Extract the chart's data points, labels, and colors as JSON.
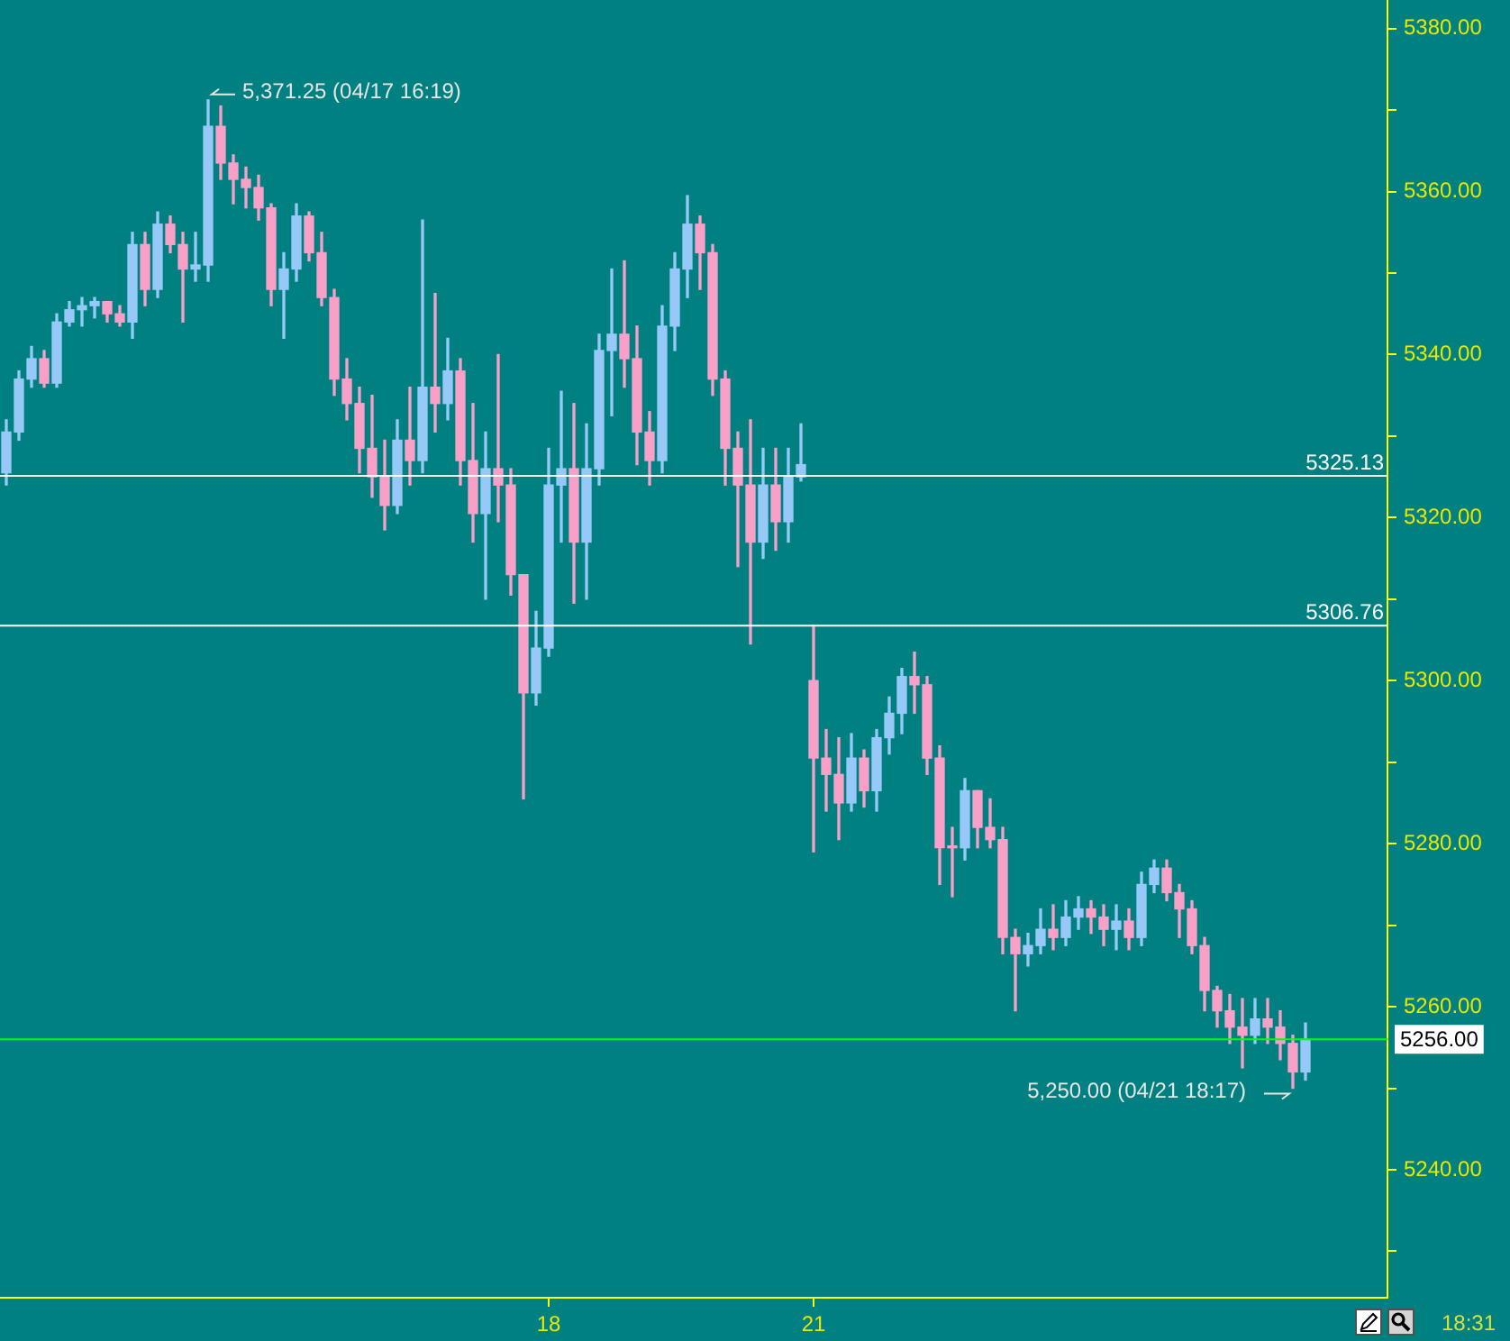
{
  "chart_data": {
    "type": "candlestick",
    "categories": [
      null,
      null,
      null,
      null,
      null,
      null,
      null,
      null,
      null,
      null,
      null,
      null,
      null,
      null,
      null,
      null,
      null,
      null,
      null,
      null,
      null,
      null,
      null,
      null,
      null,
      null,
      null,
      null,
      null,
      null,
      null,
      null,
      null,
      null,
      null,
      null,
      null,
      null,
      null,
      null,
      null,
      null,
      null,
      "18",
      null,
      null,
      null,
      null,
      null,
      null,
      null,
      null,
      null,
      null,
      null,
      null,
      null,
      null,
      null,
      null,
      null,
      null,
      null,
      null,
      "21",
      null,
      null,
      null,
      null,
      null,
      null,
      null,
      null,
      null,
      null,
      null,
      null,
      null,
      null,
      null,
      null,
      null,
      null,
      null,
      null,
      null,
      null,
      null,
      null,
      null,
      null,
      null,
      null,
      null,
      null,
      null,
      null,
      null,
      null,
      null,
      null,
      null,
      null,
      null,
      null,
      null,
      null,
      null,
      null,
      null
    ],
    "ohlc": [
      [
        5325.5,
        5332,
        5324,
        5330.5
      ],
      [
        5330.5,
        5338,
        5329.5,
        5337
      ],
      [
        5337,
        5341,
        5336,
        5339.5
      ],
      [
        5339.5,
        5340.5,
        5336,
        5336.5
      ],
      [
        5336.5,
        5345,
        5336,
        5344
      ],
      [
        5344,
        5346.5,
        5343.5,
        5345.5
      ],
      [
        5345.5,
        5347,
        5343.5,
        5346
      ],
      [
        5346,
        5347,
        5344.5,
        5346.5
      ],
      [
        5346.5,
        5346.5,
        5344,
        5345
      ],
      [
        5345,
        5346,
        5343.5,
        5344
      ],
      [
        5344,
        5355,
        5342,
        5353.5
      ],
      [
        5353.5,
        5355,
        5346,
        5348
      ],
      [
        5348,
        5357.5,
        5347,
        5356
      ],
      [
        5356,
        5357,
        5352.5,
        5353.5
      ],
      [
        5353.5,
        5355,
        5344,
        5350.5
      ],
      [
        5350.5,
        5355,
        5349,
        5351
      ],
      [
        5351,
        5371.25,
        5349,
        5368
      ],
      [
        5368,
        5370.5,
        5361.5,
        5363.5
      ],
      [
        5363.5,
        5364.5,
        5358.5,
        5361.5
      ],
      [
        5361.5,
        5363,
        5358,
        5360.5
      ],
      [
        5360.5,
        5362,
        5356.5,
        5358
      ],
      [
        5358,
        5358.5,
        5346,
        5348
      ],
      [
        5348,
        5352.5,
        5342,
        5350.5
      ],
      [
        5350.5,
        5358.5,
        5349,
        5357
      ],
      [
        5357,
        5357.5,
        5351.5,
        5352.5
      ],
      [
        5352.5,
        5355,
        5346,
        5347
      ],
      [
        5347,
        5348,
        5335,
        5337
      ],
      [
        5337,
        5339.5,
        5332,
        5334
      ],
      [
        5334,
        5336,
        5325.5,
        5328.5
      ],
      [
        5328.5,
        5335,
        5322.5,
        5325
      ],
      [
        5325,
        5329.5,
        5318.5,
        5321.5
      ],
      [
        5321.5,
        5332,
        5320.5,
        5329.5
      ],
      [
        5329.5,
        5336,
        5324,
        5327
      ],
      [
        5327,
        5356.5,
        5325.5,
        5336
      ],
      [
        5336,
        5347.5,
        5330.5,
        5334
      ],
      [
        5334,
        5342,
        5332,
        5338
      ],
      [
        5338,
        5339.5,
        5324,
        5327
      ],
      [
        5327,
        5334,
        5317,
        5320.5
      ],
      [
        5320.5,
        5330.5,
        5310,
        5326
      ],
      [
        5326,
        5340,
        5319.5,
        5324
      ],
      [
        5324,
        5326,
        5310.5,
        5313
      ],
      [
        5313,
        5313,
        5285.5,
        5298.5
      ],
      [
        5298.5,
        5308.5,
        5297,
        5304
      ],
      [
        5304,
        5328.5,
        5303,
        5324
      ],
      [
        5324,
        5335.5,
        5317,
        5326
      ],
      [
        5326,
        5334,
        5309.5,
        5317
      ],
      [
        5317,
        5331.5,
        5310,
        5326
      ],
      [
        5326,
        5342.5,
        5324,
        5340.5
      ],
      [
        5340.5,
        5350.5,
        5332.5,
        5342.5
      ],
      [
        5342.5,
        5351.5,
        5336,
        5339.5
      ],
      [
        5339.5,
        5343.5,
        5326.5,
        5330.5
      ],
      [
        5330.5,
        5333,
        5324,
        5327
      ],
      [
        5327,
        5346,
        5325.5,
        5343.5
      ],
      [
        5343.5,
        5352.5,
        5340.5,
        5350.5
      ],
      [
        5350.5,
        5359.5,
        5347,
        5356
      ],
      [
        5356,
        5357,
        5348,
        5352.5
      ],
      [
        5352.5,
        5353.5,
        5335,
        5337
      ],
      [
        5337,
        5338,
        5324,
        5328.5
      ],
      [
        5328.5,
        5330.5,
        5314,
        5324
      ],
      [
        5324,
        5332,
        5304.5,
        5317
      ],
      [
        5317,
        5328.5,
        5315,
        5324
      ],
      [
        5324,
        5328.5,
        5316,
        5319.5
      ],
      [
        5319.5,
        5328.5,
        5317,
        5325
      ],
      [
        5325,
        5331.5,
        5324.5,
        5326.5
      ],
      [
        5300,
        5306.75,
        5279,
        5290.5
      ],
      [
        5290.5,
        5294,
        5284,
        5288.5
      ],
      [
        5288.5,
        5293,
        5280.5,
        5285
      ],
      [
        5285,
        5293.5,
        5284,
        5290.5
      ],
      [
        5290.5,
        5291.5,
        5284.5,
        5286.5
      ],
      [
        5286.5,
        5294,
        5284,
        5293
      ],
      [
        5293,
        5298,
        5291,
        5296
      ],
      [
        5296,
        5301.5,
        5293.5,
        5300.5
      ],
      [
        5300.5,
        5303.5,
        5296,
        5299.5
      ],
      [
        5299.5,
        5300.5,
        5288.5,
        5290.5
      ],
      [
        5290.5,
        5292,
        5275,
        5279.5
      ],
      [
        5279.5,
        5282,
        5273.5,
        5279.5
      ],
      [
        5279.5,
        5288,
        5278,
        5286.5
      ],
      [
        5286.5,
        5286.5,
        5279.5,
        5282
      ],
      [
        5282,
        5285.5,
        5279.5,
        5280.5
      ],
      [
        5280.5,
        5282,
        5266.5,
        5268.5
      ],
      [
        5268.5,
        5269.5,
        5259.5,
        5266.5
      ],
      [
        5266.5,
        5269,
        5265,
        5267.5
      ],
      [
        5267.5,
        5272,
        5266.5,
        5269.5
      ],
      [
        5269.5,
        5272.5,
        5267,
        5268.5
      ],
      [
        5268.5,
        5273,
        5267.5,
        5271
      ],
      [
        5271,
        5273.5,
        5269.5,
        5272
      ],
      [
        5272,
        5273,
        5269,
        5271
      ],
      [
        5271,
        5272.5,
        5267.5,
        5269.5
      ],
      [
        5269.5,
        5272.5,
        5267,
        5270.5
      ],
      [
        5270.5,
        5272,
        5267,
        5268.5
      ],
      [
        5268.5,
        5276.5,
        5267.5,
        5275
      ],
      [
        5275,
        5278,
        5274,
        5277
      ],
      [
        5277,
        5278,
        5273,
        5274
      ],
      [
        5274,
        5275,
        5268.5,
        5272
      ],
      [
        5272,
        5273,
        5266.5,
        5267.5
      ],
      [
        5267.5,
        5268.5,
        5259.5,
        5262
      ],
      [
        5262,
        5262.5,
        5257.5,
        5259.5
      ],
      [
        5259.5,
        5261.5,
        5255.5,
        5257.5
      ],
      [
        5257.5,
        5261,
        5252.5,
        5256.5
      ],
      [
        5256.5,
        5261,
        5255.5,
        5258.5
      ],
      [
        5258.5,
        5261,
        5255.5,
        5257.5
      ],
      [
        5257.5,
        5259.5,
        5253.5,
        5255.5
      ],
      [
        5255.5,
        5256.5,
        5250,
        5252
      ],
      [
        5252,
        5258,
        5251,
        5256
      ],
      null,
      null,
      null,
      null,
      null,
      null
    ],
    "colors": [
      "#96c8f8",
      "#96c8f8",
      "#96c8f8",
      "#f8a0c8",
      "#96c8f8",
      "#96c8f8",
      "#96c8f8",
      "#96c8f8",
      "#f8a0c8",
      "#f8a0c8",
      "#96c8f8",
      "#f8a0c8",
      "#96c8f8",
      "#f8a0c8",
      "#f8a0c8",
      "#96c8f8",
      "#96c8f8",
      "#f8a0c8",
      "#f8a0c8",
      "#f8a0c8",
      "#f8a0c8",
      "#f8a0c8",
      "#96c8f8",
      "#96c8f8",
      "#f8a0c8",
      "#f8a0c8",
      "#f8a0c8",
      "#f8a0c8",
      "#f8a0c8",
      "#f8a0c8",
      "#f8a0c8",
      "#96c8f8",
      "#f8a0c8",
      "#96c8f8",
      "#f8a0c8",
      "#96c8f8",
      "#f8a0c8",
      "#f8a0c8",
      "#96c8f8",
      "#f8a0c8",
      "#f8a0c8",
      "#f8a0c8",
      "#96c8f8",
      "#96c8f8",
      "#96c8f8",
      "#f8a0c8",
      "#96c8f8",
      "#96c8f8",
      "#96c8f8",
      "#f8a0c8",
      "#f8a0c8",
      "#f8a0c8",
      "#96c8f8",
      "#96c8f8",
      "#96c8f8",
      "#f8a0c8",
      "#f8a0c8",
      "#f8a0c8",
      "#f8a0c8",
      "#f8a0c8",
      "#96c8f8",
      "#f8a0c8",
      "#96c8f8",
      "#96c8f8",
      "#f8a0c8",
      "#f8a0c8",
      "#f8a0c8",
      "#96c8f8",
      "#f8a0c8",
      "#96c8f8",
      "#96c8f8",
      "#96c8f8",
      "#f8a0c8",
      "#f8a0c8",
      "#f8a0c8",
      "#f8a0c8",
      "#96c8f8",
      "#f8a0c8",
      "#f8a0c8",
      "#f8a0c8",
      "#f8a0c8",
      "#96c8f8",
      "#96c8f8",
      "#f8a0c8",
      "#96c8f8",
      "#96c8f8",
      "#f8a0c8",
      "#f8a0c8",
      "#96c8f8",
      "#f8a0c8",
      "#96c8f8",
      "#96c8f8",
      "#f8a0c8",
      "#f8a0c8",
      "#f8a0c8",
      "#f8a0c8",
      "#f8a0c8",
      "#f8a0c8",
      "#f8a0c8",
      "#96c8f8",
      "#f8a0c8",
      "#f8a0c8",
      "#f8a0c8",
      "#96c8f8",
      null,
      null,
      null,
      null,
      null,
      null
    ],
    "ylim": [
      5224.3,
      5383.5
    ],
    "yticks": [
      {
        "value": 5230,
        "label": null
      },
      {
        "value": 5240,
        "label": "5240.00"
      },
      {
        "value": 5250,
        "label": null
      },
      {
        "value": 5260,
        "label": "5260.00"
      },
      {
        "value": 5270,
        "label": null
      },
      {
        "value": 5280,
        "label": "5280.00"
      },
      {
        "value": 5290,
        "label": null
      },
      {
        "value": 5300,
        "label": "5300.00"
      },
      {
        "value": 5310,
        "label": null
      },
      {
        "value": 5320,
        "label": "5320.00"
      },
      {
        "value": 5330,
        "label": null
      },
      {
        "value": 5340,
        "label": "5340.00"
      },
      {
        "value": 5350,
        "label": null
      },
      {
        "value": 5360,
        "label": "5360.00"
      },
      {
        "value": 5370,
        "label": null
      },
      {
        "value": 5380,
        "label": "5380.00"
      }
    ],
    "ref_lines": [
      {
        "axis": "y",
        "value": 5325.13,
        "label": "5325.13",
        "color": "#ffffff"
      },
      {
        "axis": "y",
        "value": 5306.76,
        "label": "5306.76",
        "color": "#ffffff"
      },
      {
        "axis": "y",
        "value": 5256,
        "label": "5256.00",
        "color": "#00ff00"
      }
    ],
    "annotations": [
      "5,371.25 (04/17 16:19)",
      "5,250.00 (04/21 18:17)",
      "18:31"
    ]
  }
}
